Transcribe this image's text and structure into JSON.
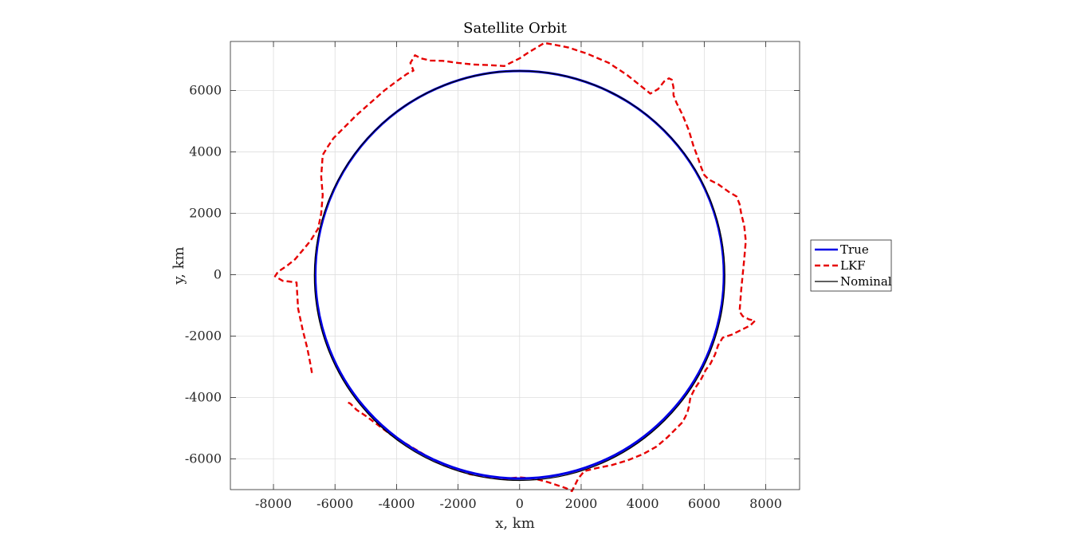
{
  "chart_data": {
    "type": "line",
    "title": "Satellite Orbit",
    "xlabel": "x, km",
    "ylabel": "y, km",
    "xlim": [
      -9400,
      9100
    ],
    "ylim": [
      -7000,
      7600
    ],
    "xticks": [
      -8000,
      -6000,
      -4000,
      -2000,
      0,
      2000,
      4000,
      6000,
      8000
    ],
    "yticks": [
      -6000,
      -4000,
      -2000,
      0,
      2000,
      4000,
      6000
    ],
    "grid": true,
    "box": true,
    "legend_position": "outside-right",
    "series": [
      {
        "name": "True",
        "color": "#0000e6",
        "style": "solid",
        "shape": "circle",
        "center": [
          0,
          0
        ],
        "radius": 6640
      },
      {
        "name": "LKF",
        "color": "#e60000",
        "style": "dashed",
        "x": [
          -6750,
          -6800,
          -6900,
          -7050,
          -7200,
          -7250,
          -7500,
          -7700,
          -7950,
          -7850,
          -7550,
          -7300,
          -7050,
          -6800,
          -6550,
          -6450,
          -6400,
          -6450,
          -6400,
          -6250,
          -6050,
          -5700,
          -5300,
          -4850,
          -4400,
          -4000,
          -3650,
          -3450,
          -3550,
          -3400,
          -3200,
          -2900,
          -2500,
          -2000,
          -1500,
          -1000,
          -500,
          -200,
          0,
          300,
          800,
          1100,
          1600,
          2200,
          2900,
          3500,
          4000,
          4250,
          4500,
          4700,
          4850,
          4950,
          5000,
          5000,
          5100,
          5300,
          5500,
          5650,
          5800,
          5900,
          6000,
          6150,
          6450,
          6800,
          7050,
          7150,
          7200,
          7300,
          7350,
          7300,
          7250,
          7200,
          7150,
          7250,
          7450,
          7650,
          7500,
          7200,
          6900,
          6600,
          6450,
          6350,
          6200,
          6050,
          5900,
          5700,
          5550,
          5500,
          5450,
          5300,
          5100,
          4800,
          4450,
          4000,
          3500,
          3000,
          2500,
          2100,
          1900,
          1800,
          1700,
          1500,
          1200,
          900,
          500,
          0,
          -500,
          -1000,
          -1600,
          -2200,
          -2700,
          -3200,
          -3700,
          -4200,
          -4600,
          -5000,
          -5300,
          -5500,
          -5600
        ],
        "y": [
          -3200,
          -2900,
          -2400,
          -1800,
          -1100,
          -250,
          -220,
          -200,
          -50,
          100,
          300,
          500,
          800,
          1100,
          1500,
          2000,
          2600,
          3200,
          3900,
          4150,
          4450,
          4800,
          5200,
          5600,
          6000,
          6300,
          6550,
          6650,
          6900,
          7150,
          7050,
          6980,
          6970,
          6900,
          6850,
          6830,
          6800,
          6950,
          7050,
          7250,
          7550,
          7500,
          7400,
          7200,
          6900,
          6500,
          6100,
          5900,
          6050,
          6300,
          6400,
          6350,
          6100,
          5850,
          5600,
          5200,
          4700,
          4200,
          3800,
          3500,
          3250,
          3100,
          2950,
          2700,
          2550,
          2300,
          2000,
          1600,
          1100,
          500,
          0,
          -500,
          -1200,
          -1350,
          -1450,
          -1500,
          -1650,
          -1800,
          -1950,
          -2050,
          -2300,
          -2600,
          -2900,
          -3100,
          -3400,
          -3700,
          -4000,
          -4300,
          -4500,
          -4800,
          -5000,
          -5300,
          -5600,
          -5850,
          -6050,
          -6200,
          -6300,
          -6400,
          -6650,
          -6850,
          -7050,
          -6950,
          -6850,
          -6750,
          -6650,
          -6600,
          -6650,
          -6600,
          -6500,
          -6300,
          -6100,
          -5800,
          -5500,
          -5200,
          -4900,
          -4600,
          -4400,
          -4200,
          -4150
        ]
      },
      {
        "name": "Nominal",
        "color": "#000000",
        "style": "solid",
        "shape": "circle",
        "center": [
          0,
          -30
        ],
        "radius": 6670
      }
    ]
  }
}
